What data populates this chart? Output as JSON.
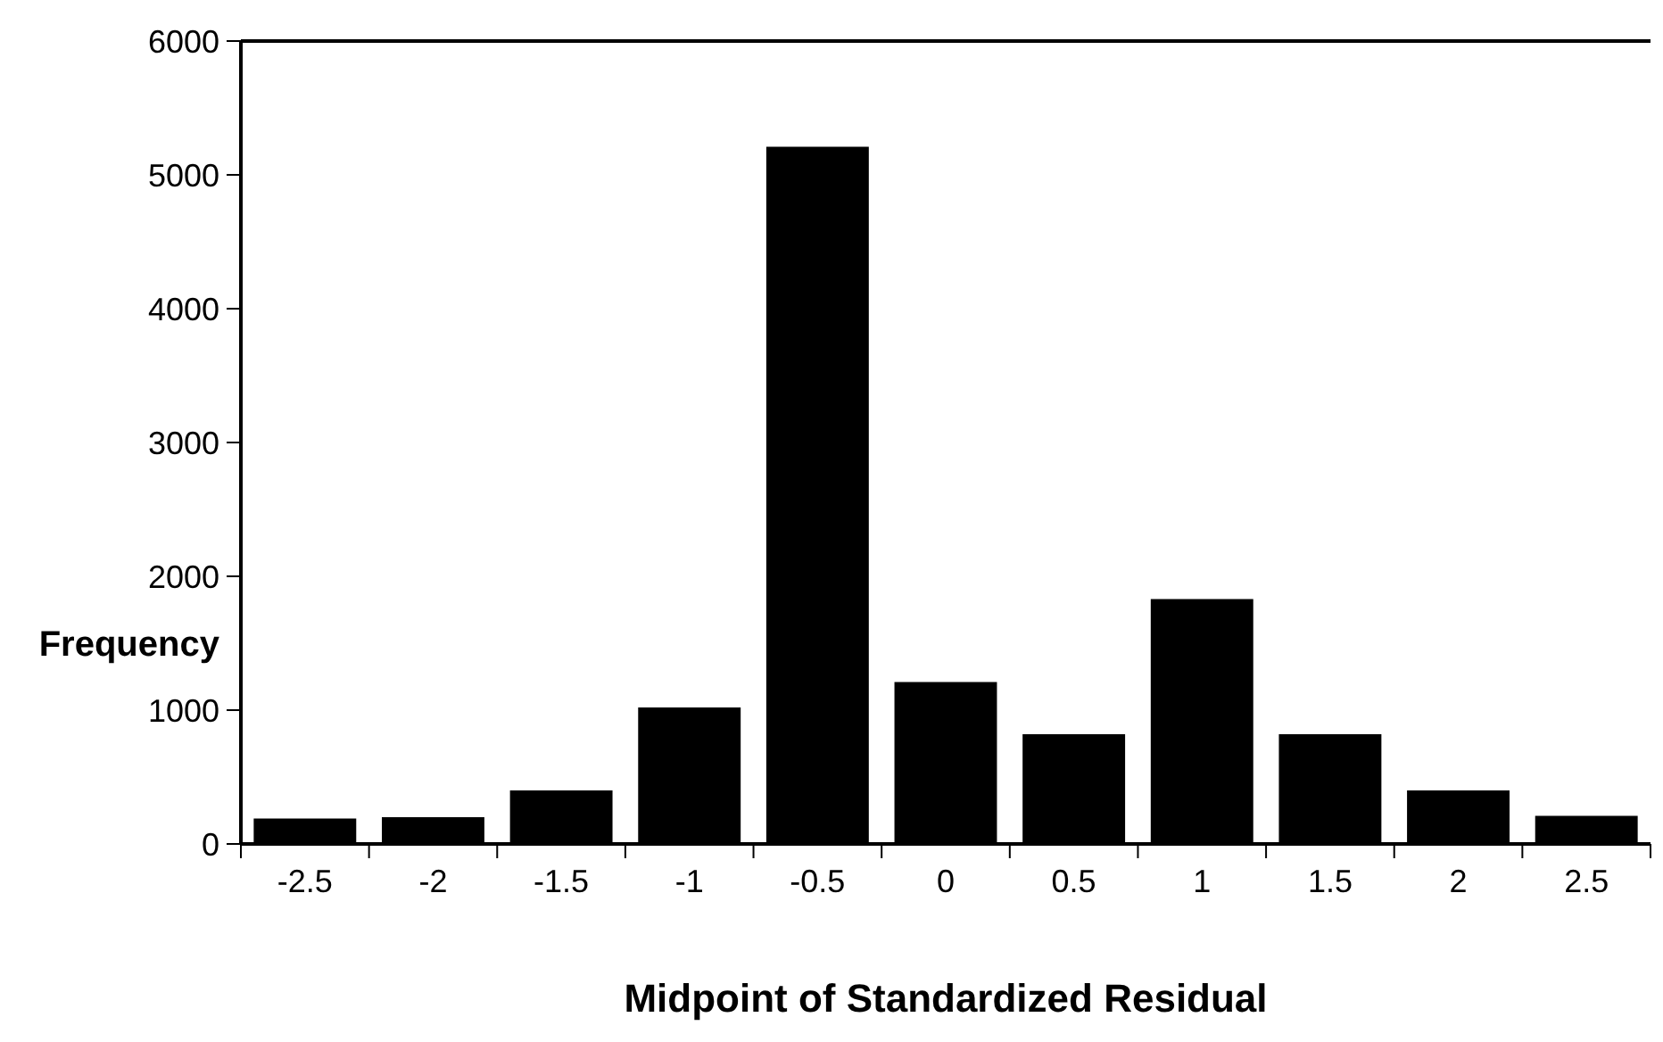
{
  "chart_data": {
    "type": "bar",
    "xlabel": "Midpoint of Standardized Residual",
    "ylabel": "Frequency",
    "categories": [
      "-2.5",
      "-2",
      "-1.5",
      "-1",
      "-0.5",
      "0",
      "0.5",
      "1",
      "1.5",
      "2",
      "2.5"
    ],
    "values": [
      190,
      200,
      400,
      1020,
      5210,
      1210,
      820,
      1830,
      820,
      400,
      210
    ],
    "color": "#000000",
    "ylim": [
      0,
      6000
    ],
    "yticks": [
      0,
      1000,
      2000,
      3000,
      4000,
      5000,
      6000
    ],
    "grid": false
  }
}
